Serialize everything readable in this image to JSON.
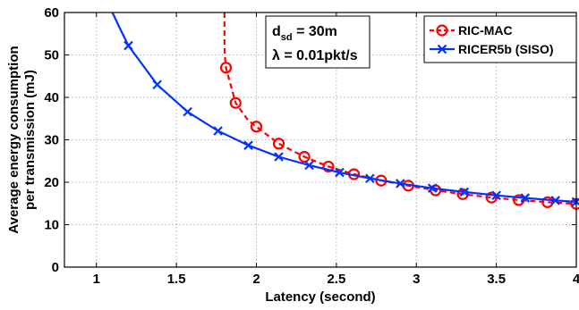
{
  "chart_data": {
    "type": "line",
    "xlabel": "Latency (second)",
    "ylabel": [
      "Average energy consumption",
      "per transmission (mJ)"
    ],
    "xlim": [
      0.8,
      4
    ],
    "ylim": [
      0,
      60
    ],
    "x_ticks": [
      1,
      1.5,
      2,
      2.5,
      3,
      3.5,
      4
    ],
    "x_tick_labels": [
      "1",
      "1.5",
      "2",
      "2.5",
      "3",
      "3.5",
      "4"
    ],
    "y_ticks": [
      0,
      10,
      20,
      30,
      40,
      50,
      60
    ],
    "y_tick_labels": [
      "0",
      "10",
      "20",
      "30",
      "40",
      "50",
      "60"
    ],
    "grid": true,
    "grid_style": "dotted",
    "legend_position": "top-right",
    "annotation": {
      "line1_main": "d",
      "line1_sub": "sd",
      "line1_rest": " = 30m",
      "line2": "λ = 0.01pkt/s"
    },
    "series": [
      {
        "name": "RIC-MAC",
        "color": "#ff0000",
        "line_style": "dashed",
        "marker": "circle",
        "curve_x": [
          1.8,
          1.8,
          1.801,
          1.803,
          1.806,
          1.81,
          1.87,
          1.95,
          2.0,
          2.14,
          2.3,
          2.45,
          2.61,
          2.78,
          2.95,
          3.12,
          3.29,
          3.47,
          3.64,
          3.82,
          4.0
        ],
        "curve_y": [
          60,
          55,
          52,
          50,
          48.5,
          47,
          38.7,
          34.5,
          33.1,
          29.1,
          26.0,
          23.7,
          21.9,
          20.4,
          19.2,
          18.1,
          17.2,
          16.4,
          15.8,
          15.3,
          14.9
        ],
        "markers_x": [
          1.81,
          1.87,
          2.0,
          2.14,
          2.3,
          2.45,
          2.61,
          2.78,
          2.95,
          3.12,
          3.29,
          3.47,
          3.64,
          3.82,
          4.0
        ],
        "markers_y": [
          47.0,
          38.7,
          33.1,
          29.1,
          26.0,
          23.7,
          21.9,
          20.4,
          19.2,
          18.1,
          17.2,
          16.4,
          15.8,
          15.3,
          14.9
        ]
      },
      {
        "name": "RICER5b (SISO)",
        "color": "#0033ff",
        "line_style": "solid",
        "marker": "x",
        "curve_x": [
          1.1,
          1.15,
          1.2,
          1.38,
          1.57,
          1.76,
          1.95,
          2.14,
          2.33,
          2.52,
          2.71,
          2.9,
          3.1,
          3.3,
          3.5,
          3.68,
          3.87,
          4.0
        ],
        "curve_y": [
          60,
          56,
          52.2,
          43.0,
          36.6,
          32.1,
          28.7,
          26.0,
          24.0,
          22.3,
          20.9,
          19.7,
          18.6,
          17.7,
          16.9,
          16.3,
          15.7,
          15.4
        ],
        "markers_x": [
          1.2,
          1.38,
          1.57,
          1.76,
          1.95,
          2.14,
          2.33,
          2.52,
          2.71,
          2.9,
          3.1,
          3.3,
          3.5,
          3.68,
          3.87,
          4.0
        ],
        "markers_y": [
          52.2,
          43.0,
          36.6,
          32.1,
          28.7,
          26.0,
          24.0,
          22.3,
          20.9,
          19.7,
          18.6,
          17.7,
          16.9,
          16.3,
          15.7,
          15.4
        ]
      }
    ]
  }
}
